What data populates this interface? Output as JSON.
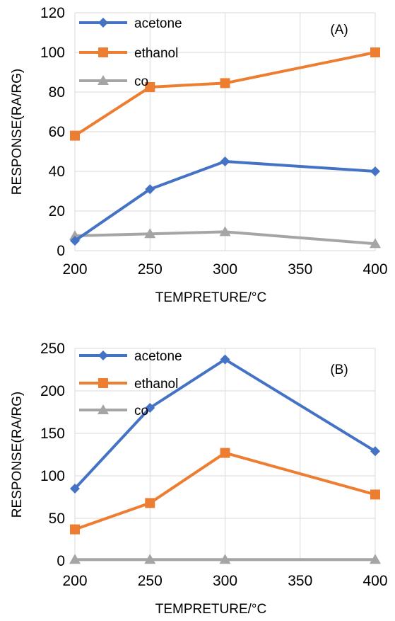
{
  "chart_data": [
    {
      "type": "line",
      "panel_label": "(A)",
      "xlabel": "TEMPRETURE/°C",
      "ylabel": "RESPONSE(RA/RG)",
      "x_ticks": [
        200,
        250,
        300,
        350,
        400
      ],
      "y_ticks": [
        0,
        20,
        40,
        60,
        80,
        100,
        120
      ],
      "xlim": [
        200,
        400
      ],
      "ylim": [
        0,
        120
      ],
      "grid": true,
      "legend_position": "top-left",
      "x": [
        200,
        250,
        300,
        400
      ],
      "series": [
        {
          "name": "acetone",
          "values": [
            5,
            31,
            45,
            40
          ],
          "color": "#4472C4",
          "marker": "diamond"
        },
        {
          "name": "ethanol",
          "values": [
            58,
            82.5,
            84.5,
            100
          ],
          "color": "#ED7D31",
          "marker": "square"
        },
        {
          "name": "co",
          "values": [
            7.5,
            8.5,
            9.5,
            3.5
          ],
          "color": "#A5A5A5",
          "marker": "triangle"
        }
      ]
    },
    {
      "type": "line",
      "panel_label": "(B)",
      "xlabel": "TEMPRETURE/°C",
      "ylabel": "RESPONSE(RA/RG)",
      "x_ticks": [
        200,
        250,
        300,
        350,
        400
      ],
      "y_ticks": [
        0,
        50,
        100,
        150,
        200,
        250
      ],
      "xlim": [
        200,
        400
      ],
      "ylim": [
        0,
        250
      ],
      "grid": true,
      "legend_position": "top-left",
      "x": [
        200,
        250,
        300,
        400
      ],
      "series": [
        {
          "name": "acetone",
          "values": [
            85,
            180,
            237,
            129
          ],
          "color": "#4472C4",
          "marker": "diamond"
        },
        {
          "name": "ethanol",
          "values": [
            37,
            68,
            127,
            78
          ],
          "color": "#ED7D31",
          "marker": "square"
        },
        {
          "name": "co",
          "values": [
            1.5,
            1.5,
            1.5,
            1.5
          ],
          "color": "#A5A5A5",
          "marker": "triangle"
        }
      ]
    }
  ]
}
